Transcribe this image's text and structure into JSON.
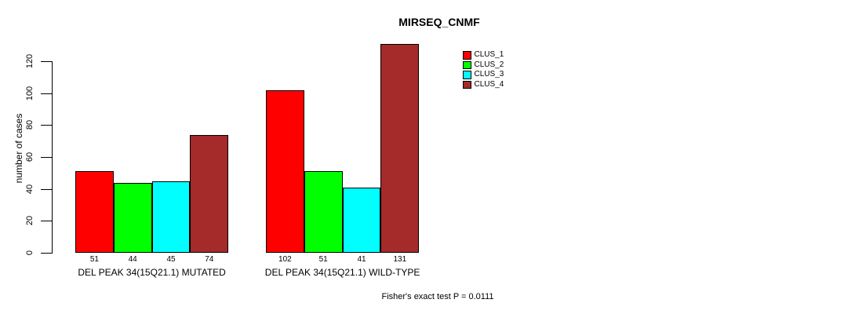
{
  "figure": {
    "title": "MIRSEQ_CNMF",
    "annotation": "Fisher's exact test P = 0.0111"
  },
  "chart_data": {
    "type": "bar",
    "title": "MIRSEQ_CNMF",
    "xlabel": "",
    "ylabel": "number of cases",
    "categories": [
      "DEL PEAK 34(15Q21.1) MUTATED",
      "DEL PEAK 34(15Q21.1) WILD-TYPE"
    ],
    "series": [
      {
        "name": "CLUS_1",
        "color": "#FF0000",
        "values": [
          51,
          102
        ]
      },
      {
        "name": "CLUS_2",
        "color": "#00FF00",
        "values": [
          44,
          51
        ]
      },
      {
        "name": "CLUS_3",
        "color": "#00FFFF",
        "values": [
          45,
          41
        ]
      },
      {
        "name": "CLUS_4",
        "color": "#A52A2A",
        "values": [
          74,
          131
        ]
      }
    ],
    "yticks": [
      0,
      20,
      40,
      60,
      80,
      100,
      120
    ],
    "ylim": [
      0,
      131
    ],
    "grid": false,
    "legend_position": "top-right",
    "bar_value_labels_shown": true,
    "annotation": "Fisher's exact test P = 0.0111",
    "axis_color": "#000000",
    "background_color": "#FFFFFF"
  }
}
